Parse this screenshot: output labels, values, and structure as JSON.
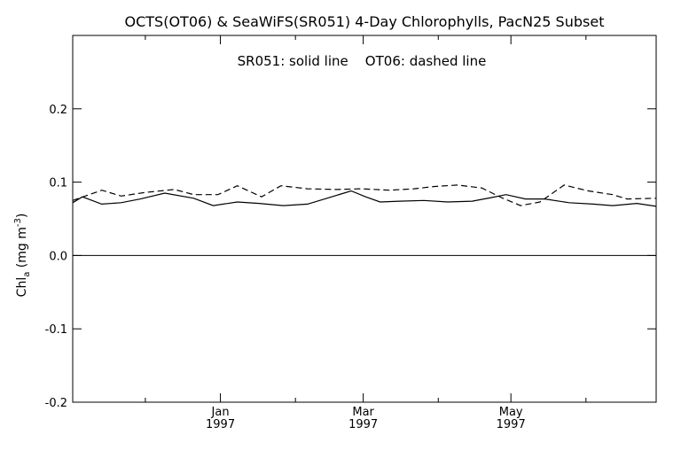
{
  "chart_data": {
    "type": "line",
    "title": "OCTS(OT06) & SeaWiFS(SR051) 4-Day Chlorophylls, PacN25 Subset",
    "legend_text": "SR051: solid line    OT06: dashed line",
    "ylabel": "Chl",
    "ylabel_sub": "a",
    "ylabel_unit": " (mg m",
    "ylabel_sup": "-3",
    "ylabel_close": ")",
    "ylim": [
      -0.2,
      0.3
    ],
    "y_ticks": [
      -0.2,
      -0.1,
      0.0,
      0.1,
      0.2
    ],
    "y_tick_labels": [
      "-0.2",
      "-0.1",
      "0.0",
      "0.1",
      "0.2"
    ],
    "zero_line": true,
    "grid": false,
    "x_axis": {
      "start": "1996-11-01",
      "end": "1997-06-30",
      "major_ticks": [
        {
          "date": "1997-01-01",
          "month": "Jan",
          "year": "1997"
        },
        {
          "date": "1997-03-01",
          "month": "Mar",
          "year": "1997"
        },
        {
          "date": "1997-05-01",
          "month": "May",
          "year": "1997"
        }
      ],
      "minor_ticks": [
        "1996-12-01",
        "1997-02-01",
        "1997-04-01",
        "1997-06-01"
      ]
    },
    "series": [
      {
        "name": "SR051",
        "style": "solid",
        "color": "#000000",
        "x": [
          "1996-11-01",
          "1996-11-05",
          "1996-11-13",
          "1996-11-21",
          "1996-11-29",
          "1996-12-09",
          "1996-12-21",
          "1996-12-29",
          "1997-01-08",
          "1997-01-17",
          "1997-01-27",
          "1997-02-06",
          "1997-02-14",
          "1997-02-24",
          "1997-03-02",
          "1997-03-08",
          "1997-03-16",
          "1997-03-26",
          "1997-04-05",
          "1997-04-15",
          "1997-04-23",
          "1997-04-29",
          "1997-05-07",
          "1997-05-15",
          "1997-05-25",
          "1997-06-04",
          "1997-06-12",
          "1997-06-22",
          "1997-06-30"
        ],
        "y": [
          0.072,
          0.08,
          0.07,
          0.072,
          0.077,
          0.085,
          0.078,
          0.068,
          0.073,
          0.071,
          0.068,
          0.07,
          0.078,
          0.088,
          0.08,
          0.073,
          0.074,
          0.075,
          0.073,
          0.074,
          0.079,
          0.083,
          0.077,
          0.077,
          0.072,
          0.07,
          0.068,
          0.071,
          0.067
        ]
      },
      {
        "name": "OT06",
        "style": "dashed",
        "color": "#000000",
        "x": [
          "1996-11-01",
          "1996-11-13",
          "1996-11-21",
          "1996-12-01",
          "1996-12-13",
          "1996-12-21",
          "1996-12-31",
          "1997-01-08",
          "1997-01-18",
          "1997-01-26",
          "1997-02-06",
          "1997-02-18",
          "1997-02-28",
          "1997-03-12",
          "1997-03-22",
          "1997-03-30",
          "1997-04-09",
          "1997-04-19",
          "1997-04-27",
          "1997-05-05",
          "1997-05-13",
          "1997-05-23",
          "1997-06-02",
          "1997-06-12",
          "1997-06-18",
          "1997-06-30"
        ],
        "y": [
          0.075,
          0.089,
          0.081,
          0.086,
          0.09,
          0.083,
          0.083,
          0.095,
          0.08,
          0.095,
          0.091,
          0.09,
          0.091,
          0.089,
          0.091,
          0.094,
          0.096,
          0.092,
          0.079,
          0.068,
          0.073,
          0.096,
          0.088,
          0.083,
          0.077,
          0.078
        ]
      }
    ]
  }
}
